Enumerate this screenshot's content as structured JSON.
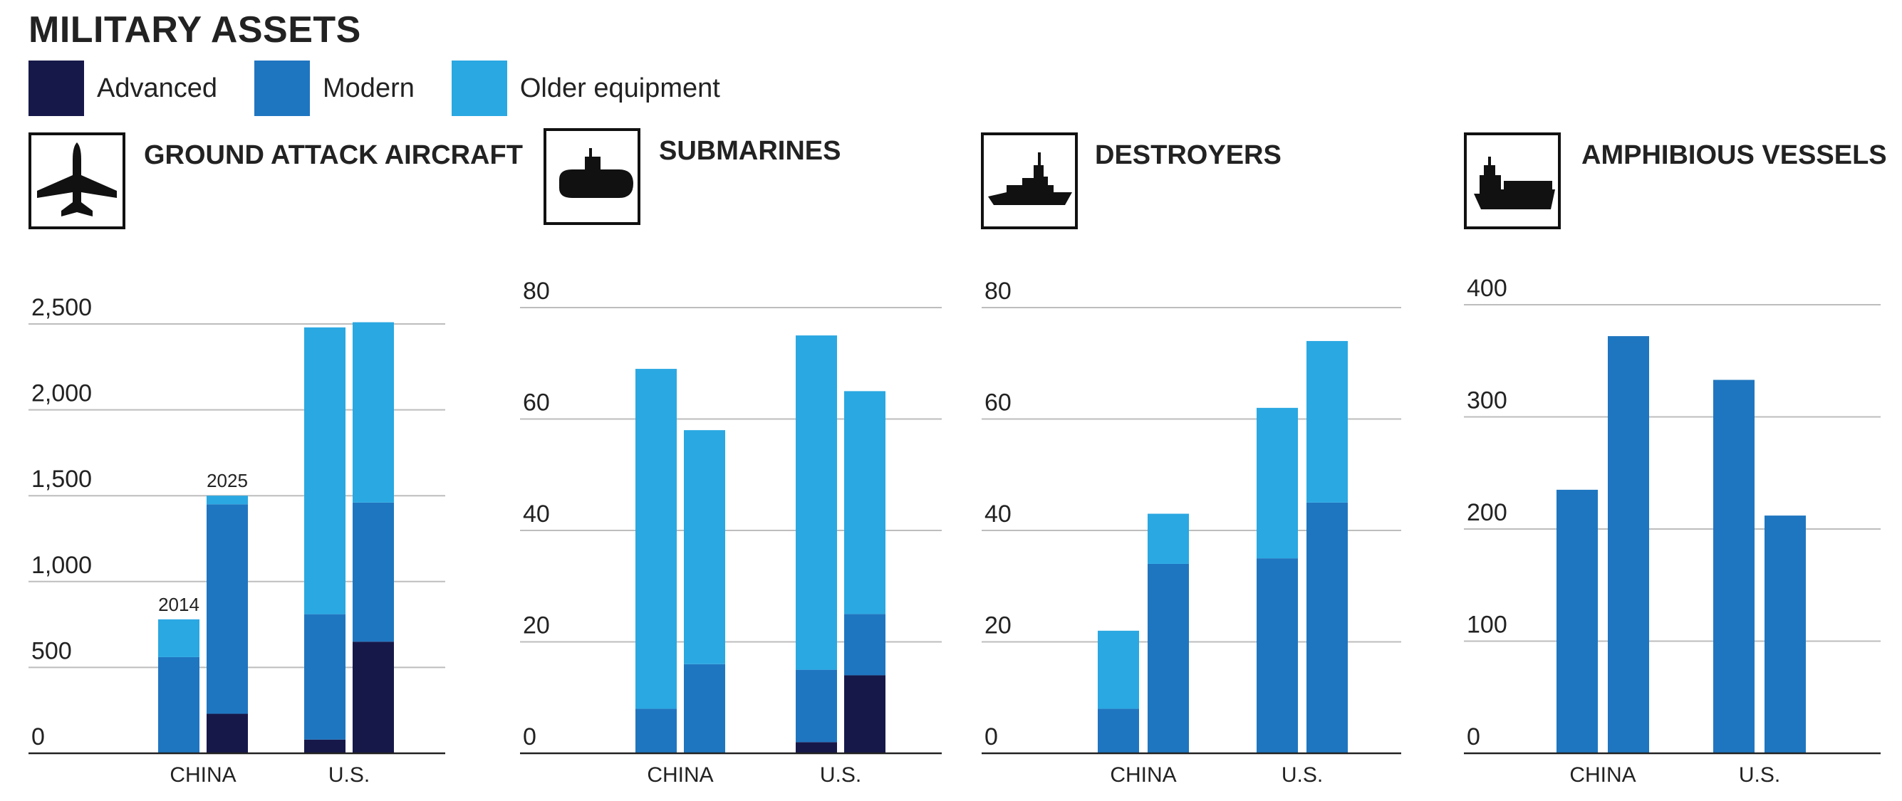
{
  "title": "MILITARY ASSETS",
  "legend": [
    {
      "label": "Advanced",
      "color": "#17184a"
    },
    {
      "label": "Modern",
      "color": "#1f76c0"
    },
    {
      "label": "Older equipment",
      "color": "#2aa8e2"
    }
  ],
  "colors": {
    "advanced": "#17184a",
    "modern": "#1f76c0",
    "older": "#2aa8e2",
    "grid": "#bdbdbd",
    "axis": "#222222"
  },
  "chart_data": [
    {
      "type": "bar",
      "stacked": true,
      "title": "GROUND ATTACK AIRCRAFT",
      "icon": "fighter-jet-icon",
      "categories": [
        "CHINA",
        "U.S."
      ],
      "years": [
        "2014",
        "2025"
      ],
      "ylim": [
        0,
        2500
      ],
      "yticks": [
        "0",
        "500",
        "1,000",
        "1,500",
        "2,000",
        "2,500"
      ],
      "year_labels_on": "CHINA",
      "series": [
        {
          "name": "Advanced",
          "values": [
            [
              0,
              230
            ],
            [
              80,
              650
            ]
          ]
        },
        {
          "name": "Modern",
          "values": [
            [
              560,
              1220
            ],
            [
              730,
              810
            ]
          ]
        },
        {
          "name": "Older equipment",
          "values": [
            [
              220,
              50
            ],
            [
              1670,
              1050
            ]
          ]
        }
      ]
    },
    {
      "type": "bar",
      "stacked": true,
      "title": "SUBMARINES",
      "icon": "submarine-icon",
      "categories": [
        "CHINA",
        "U.S."
      ],
      "ylim": [
        0,
        80
      ],
      "yticks": [
        "0",
        "20",
        "40",
        "60",
        "80"
      ],
      "series": [
        {
          "name": "Advanced",
          "values": [
            [
              0,
              0
            ],
            [
              2,
              14
            ]
          ]
        },
        {
          "name": "Modern",
          "values": [
            [
              8,
              16
            ],
            [
              13,
              11
            ]
          ]
        },
        {
          "name": "Older equipment",
          "values": [
            [
              61,
              42
            ],
            [
              60,
              40
            ]
          ]
        }
      ]
    },
    {
      "type": "bar",
      "stacked": true,
      "title": "DESTROYERS",
      "icon": "warship-icon",
      "categories": [
        "CHINA",
        "U.S."
      ],
      "ylim": [
        0,
        80
      ],
      "yticks": [
        "0",
        "20",
        "40",
        "60",
        "80"
      ],
      "series": [
        {
          "name": "Advanced",
          "values": [
            [
              0,
              0
            ],
            [
              0,
              0
            ]
          ]
        },
        {
          "name": "Modern",
          "values": [
            [
              8,
              34
            ],
            [
              35,
              45
            ]
          ]
        },
        {
          "name": "Older equipment",
          "values": [
            [
              14,
              9
            ],
            [
              27,
              29
            ]
          ]
        }
      ]
    },
    {
      "type": "bar",
      "stacked": true,
      "title": "AMPHIBIOUS VESSELS",
      "icon": "amphibious-ship-icon",
      "categories": [
        "CHINA",
        "U.S."
      ],
      "ylim": [
        0,
        400
      ],
      "yticks": [
        "0",
        "100",
        "200",
        "300",
        "400"
      ],
      "series": [
        {
          "name": "Advanced",
          "values": [
            [
              0,
              0
            ],
            [
              0,
              0
            ]
          ]
        },
        {
          "name": "Modern",
          "values": [
            [
              235,
              372
            ],
            [
              333,
              212
            ]
          ]
        },
        {
          "name": "Older equipment",
          "values": [
            [
              0,
              0
            ],
            [
              0,
              0
            ]
          ]
        }
      ]
    }
  ]
}
